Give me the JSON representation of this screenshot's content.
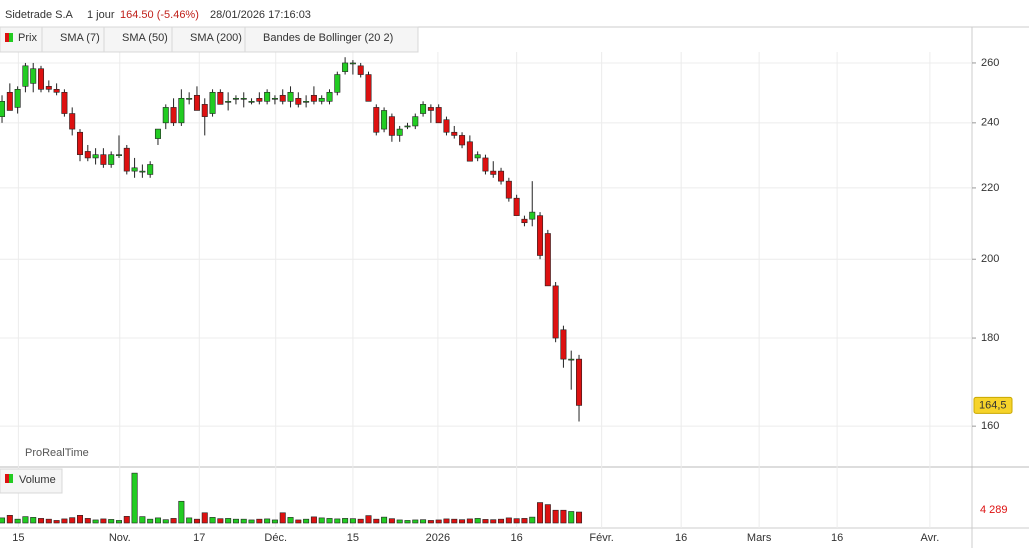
{
  "header": {
    "title": "Sidetrade S.A",
    "period": "1 jour",
    "change": "164.50 (-5.46%)",
    "timestamp": "28/01/2026 17:16:03",
    "watermark": "ProRealTime"
  },
  "toolbar": [
    "Prix",
    "SMA (7)",
    "SMA (50)",
    "SMA (200)",
    "Bandes de Bollinger (20 2)"
  ],
  "chart_data": [
    {
      "type": "candlestick",
      "log_scale": true,
      "grid": true,
      "up_color": "#22cc22",
      "down_color": "#dd1111",
      "xlim": [
        -0.26,
        124.4
      ],
      "xticks": [
        {
          "value": 2.1,
          "label": "15"
        },
        {
          "value": 15.1,
          "label": "Nov."
        },
        {
          "value": 25.3,
          "label": "17"
        },
        {
          "value": 35.1,
          "label": "Déc."
        },
        {
          "value": 45.0,
          "label": "15"
        },
        {
          "value": 55.9,
          "label": "2026"
        },
        {
          "value": 66.0,
          "label": "16"
        },
        {
          "value": 76.9,
          "label": "Févr."
        },
        {
          "value": 87.1,
          "label": "16"
        },
        {
          "value": 97.1,
          "label": "Mars"
        },
        {
          "value": 107.1,
          "label": "16"
        },
        {
          "value": 119.0,
          "label": "Avr."
        }
      ],
      "ylim": [
        151.5,
        272.8
      ],
      "yticks": [
        160,
        180,
        200,
        220,
        240,
        260
      ],
      "last_price": {
        "value": 164.5,
        "label": "164,5"
      },
      "open": [
        242,
        250,
        245,
        252,
        253,
        258,
        252,
        251,
        250,
        243,
        237,
        231,
        229,
        230,
        227,
        230,
        232,
        225,
        225,
        224,
        235,
        240,
        245,
        240,
        248,
        249,
        246,
        243,
        250,
        247,
        248,
        248,
        247,
        248,
        247,
        248,
        249,
        247,
        248,
        247,
        249,
        247,
        247,
        250,
        257,
        260,
        259,
        256,
        245,
        238,
        242,
        236,
        239,
        239,
        243,
        245,
        245,
        241,
        237,
        236,
        234,
        229,
        229,
        225,
        225,
        222,
        217,
        211,
        211,
        212,
        207,
        193,
        182,
        175,
        175
      ],
      "high": [
        249,
        253,
        252,
        260,
        260,
        259,
        254,
        253,
        251,
        245,
        238,
        233,
        232,
        232,
        231,
        236,
        233,
        229,
        227,
        228,
        238,
        246,
        248,
        251,
        250,
        252,
        248,
        251,
        251,
        250,
        249,
        250,
        248,
        250,
        251,
        249,
        251,
        252,
        250,
        249,
        252,
        249,
        251,
        257,
        262,
        261,
        260,
        257,
        246,
        245,
        243,
        239,
        240,
        243,
        247,
        246,
        246,
        242,
        239,
        237,
        236,
        231,
        230,
        228,
        226,
        223,
        218,
        212,
        222,
        213,
        208,
        194,
        183,
        177,
        176
      ],
      "low": [
        240,
        244,
        243,
        250,
        250,
        250,
        250,
        249,
        242,
        236,
        228,
        228,
        227,
        226,
        226,
        229,
        224,
        223,
        223,
        223,
        233,
        238,
        239,
        239,
        246,
        244,
        236,
        242,
        246,
        244,
        246,
        245,
        246,
        246,
        246,
        246,
        246,
        245,
        245,
        245,
        246,
        246,
        246,
        249,
        256,
        256,
        255,
        247,
        236,
        237,
        234,
        234,
        238,
        238,
        242,
        240,
        240,
        236,
        235,
        232,
        228,
        228,
        224,
        223,
        221,
        216,
        212,
        209,
        209,
        200,
        193,
        179,
        173,
        168,
        161
      ],
      "close": [
        247,
        244,
        251,
        259,
        258,
        251,
        251,
        250,
        243,
        238,
        230,
        229,
        230,
        227,
        230,
        230,
        225,
        226,
        225,
        227,
        238,
        245,
        240,
        248,
        248,
        244,
        242,
        250,
        246,
        247,
        248,
        248,
        247,
        247,
        250,
        248,
        247,
        250,
        246,
        247,
        247,
        248,
        250,
        256,
        260,
        260,
        256,
        247,
        237,
        244,
        236,
        238,
        239,
        242,
        246,
        244,
        240,
        237,
        236,
        233,
        228,
        230,
        225,
        224,
        222,
        217,
        212,
        210,
        213,
        201,
        193,
        180,
        175,
        175,
        164.5
      ]
    },
    {
      "type": "volume",
      "title": "Volume",
      "ylim": [
        0,
        21500
      ],
      "last_volume": {
        "value": 4289,
        "label": "4 289"
      },
      "values": [
        2000,
        3000,
        1500,
        2500,
        2200,
        1800,
        1500,
        1000,
        1600,
        2100,
        3000,
        1800,
        1200,
        1600,
        1400,
        1000,
        2600,
        19500,
        2500,
        1500,
        2000,
        1300,
        1800,
        8500,
        2000,
        1500,
        4000,
        2200,
        1700,
        1800,
        1500,
        1500,
        1200,
        1500,
        1600,
        1200,
        4000,
        2200,
        1200,
        1500,
        2400,
        2000,
        1800,
        1600,
        1800,
        1700,
        1500,
        2900,
        1500,
        2300,
        1700,
        1200,
        1000,
        1200,
        1300,
        1000,
        1200,
        1600,
        1500,
        1300,
        1600,
        1800,
        1400,
        1300,
        1500,
        2000,
        1700,
        1800,
        2300,
        8000,
        7200,
        5000,
        5000,
        4500,
        4289
      ]
    }
  ]
}
